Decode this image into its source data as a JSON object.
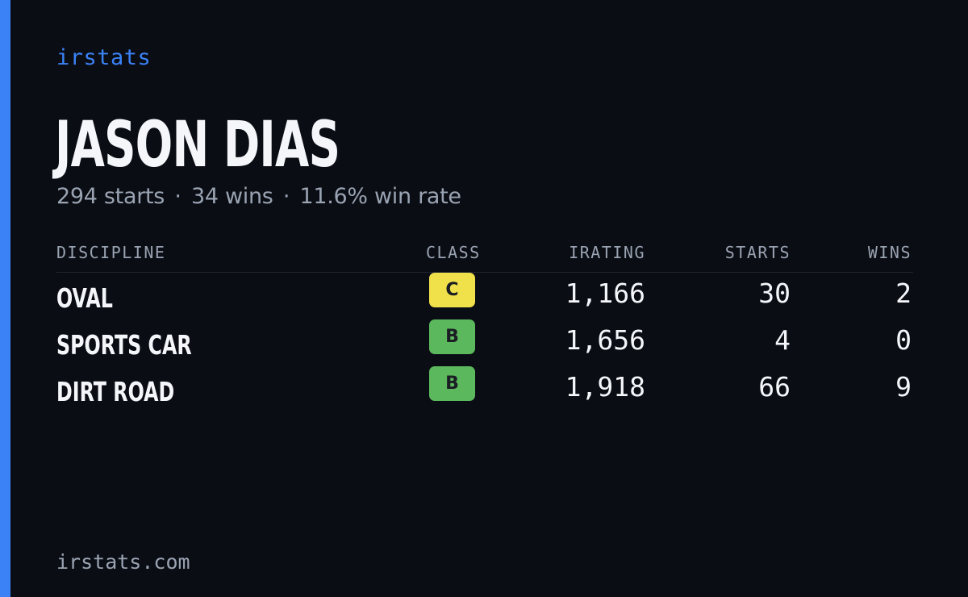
{
  "brand": "irstats",
  "driver": {
    "name": "JASON DIAS"
  },
  "summary": {
    "starts": "294 starts",
    "wins": "34 wins",
    "win_rate": "11.6% win rate",
    "separator": "·"
  },
  "table": {
    "headers": {
      "discipline": "DISCIPLINE",
      "class": "CLASS",
      "irating": "IRATING",
      "starts": "STARTS",
      "wins": "WINS"
    },
    "rows": [
      {
        "discipline": "OVAL",
        "class": "C",
        "class_color": "#f0e04a",
        "irating": "1,166",
        "starts": "30",
        "wins": "2"
      },
      {
        "discipline": "SPORTS CAR",
        "class": "B",
        "class_color": "#5cb85c",
        "irating": "1,656",
        "starts": "4",
        "wins": "0"
      },
      {
        "discipline": "DIRT ROAD",
        "class": "B",
        "class_color": "#5cb85c",
        "irating": "1,918",
        "starts": "66",
        "wins": "9"
      }
    ]
  },
  "footer": {
    "site": "irstats.com"
  },
  "colors": {
    "accent": "#3b82f6",
    "background": "#0a0d14",
    "muted": "#9aa3b2"
  }
}
